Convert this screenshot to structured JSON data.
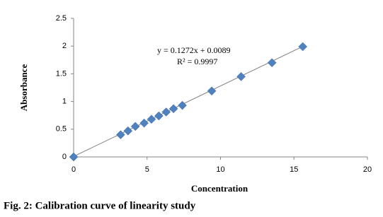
{
  "chart_data": {
    "type": "scatter",
    "x": [
      0,
      3.2,
      3.7,
      4.2,
      4.8,
      5.3,
      5.8,
      6.3,
      6.8,
      7.4,
      9.4,
      11.4,
      13.5,
      15.6
    ],
    "series": [
      {
        "name": "Absorbance",
        "color": "#4f81bd",
        "values": [
          0,
          0.4,
          0.47,
          0.55,
          0.61,
          0.68,
          0.74,
          0.81,
          0.87,
          0.93,
          1.19,
          1.45,
          1.7,
          1.99
        ]
      }
    ],
    "trendline": {
      "slope": 0.1272,
      "intercept": 0.0089,
      "color": "#7f7f7f"
    },
    "annotations": [
      "y = 0.1272x + 0.0089",
      "R² = 0.9997"
    ],
    "xlabel": "Concentration",
    "ylabel": "Absorbance",
    "caption": "Fig. 2: Calibration curve of linearity study",
    "xlim": [
      0,
      20
    ],
    "xticks": [
      0,
      5,
      10,
      15,
      20
    ],
    "ylim": [
      0,
      2.5
    ],
    "yticks": [
      0,
      0.5,
      1,
      1.5,
      2,
      2.5
    ],
    "grid": false
  }
}
